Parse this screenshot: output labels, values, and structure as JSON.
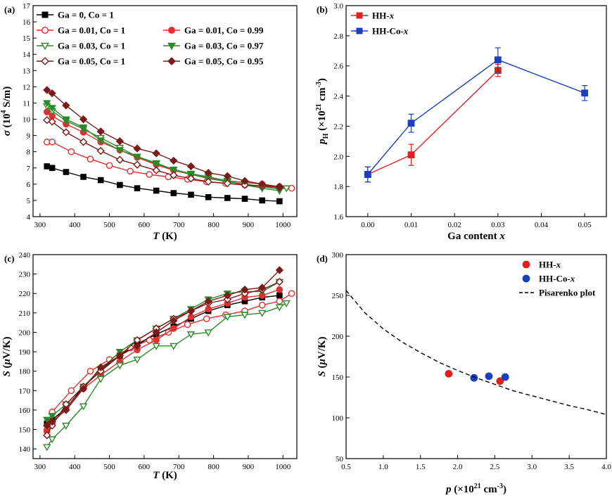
{
  "chart_data": [
    {
      "panel": "(a)",
      "type": "line",
      "xlabel": "T (K)",
      "ylabel": "σ (10^4 S/m)",
      "xlim": [
        280,
        1040
      ],
      "ylim": [
        4,
        17
      ],
      "xticks": [
        300,
        400,
        500,
        600,
        700,
        800,
        900,
        1000
      ],
      "yticks": [
        4,
        5,
        6,
        7,
        8,
        9,
        10,
        11,
        12,
        13,
        14,
        15,
        16,
        17
      ],
      "legend": "top-left",
      "series": [
        {
          "name": "Ga = 0, Co = 1",
          "color": "#000000",
          "marker": "square",
          "filled": true,
          "x": [
            320,
            335,
            375,
            425,
            475,
            530,
            580,
            635,
            685,
            735,
            785,
            840,
            890,
            940,
            990
          ],
          "y": [
            7.1,
            7.0,
            6.75,
            6.45,
            6.25,
            5.95,
            5.75,
            5.6,
            5.45,
            5.35,
            5.2,
            5.15,
            5.1,
            5.0,
            4.95
          ]
        },
        {
          "name": "Ga = 0.01, Co = 1",
          "color": "#e03030",
          "marker": "circle",
          "filled": false,
          "x": [
            320,
            335,
            390,
            445,
            500,
            560,
            615,
            670,
            725,
            780,
            835,
            890,
            940,
            990,
            1025
          ],
          "y": [
            8.6,
            8.6,
            8.0,
            7.55,
            7.15,
            6.8,
            6.6,
            6.45,
            6.3,
            6.15,
            6.05,
            5.95,
            5.85,
            5.8,
            5.75
          ]
        },
        {
          "name": "Ga = 0.01, Co = 0.99",
          "color": "#e03030",
          "marker": "circle",
          "filled": true,
          "x": [
            320,
            335,
            375,
            425,
            475,
            530,
            580,
            635,
            685,
            735,
            785,
            840,
            890,
            940,
            990
          ],
          "y": [
            10.45,
            10.2,
            9.7,
            9.2,
            8.6,
            8.1,
            7.65,
            7.2,
            6.85,
            6.6,
            6.4,
            6.2,
            6.1,
            6.0,
            5.85
          ]
        },
        {
          "name": "Ga = 0.03, Co = 1",
          "color": "#2a8a2a",
          "marker": "triangle-down",
          "filled": false,
          "x": [
            320,
            335,
            375,
            425,
            475,
            530,
            580,
            635,
            685,
            735,
            785,
            840,
            890,
            940,
            990,
            1010
          ],
          "y": [
            10.8,
            10.5,
            9.9,
            9.4,
            8.85,
            8.25,
            7.7,
            7.25,
            6.9,
            6.6,
            6.35,
            6.15,
            6.0,
            5.85,
            5.7,
            5.75
          ]
        },
        {
          "name": "Ga = 0.03, Co = 0.97",
          "color": "#2a8a2a",
          "marker": "triangle-down",
          "filled": true,
          "x": [
            320,
            335,
            375,
            425,
            475,
            530,
            580,
            635,
            685,
            735,
            785,
            840,
            890,
            940,
            990
          ],
          "y": [
            11.0,
            10.7,
            10.0,
            9.5,
            8.7,
            8.1,
            7.7,
            7.3,
            6.9,
            6.65,
            6.45,
            6.2,
            5.95,
            5.75,
            5.6
          ]
        },
        {
          "name": "Ga = 0.05, Co = 1",
          "color": "#7a1a1a",
          "marker": "diamond",
          "filled": false,
          "x": [
            320,
            335,
            375,
            425,
            475,
            530,
            580,
            635,
            685,
            735,
            785,
            840,
            890,
            940,
            990
          ],
          "y": [
            9.95,
            9.85,
            9.2,
            8.6,
            8.05,
            7.5,
            7.2,
            6.85,
            6.55,
            6.35,
            6.15,
            6.05,
            5.95,
            5.9,
            5.85
          ]
        },
        {
          "name": "Ga = 0.05, Co = 0.95",
          "color": "#7a1a1a",
          "marker": "diamond",
          "filled": true,
          "x": [
            320,
            335,
            375,
            425,
            475,
            530,
            580,
            635,
            685,
            735,
            785,
            840,
            890,
            940,
            990
          ],
          "y": [
            11.8,
            11.6,
            10.85,
            10.0,
            9.25,
            8.65,
            8.2,
            7.9,
            7.45,
            7.1,
            6.7,
            6.5,
            6.2,
            6.0,
            5.8
          ]
        }
      ]
    },
    {
      "panel": "(b)",
      "type": "line",
      "xlabel": "Ga content x",
      "ylabel": "p_H (×10^21 cm^-3)",
      "xlim": [
        -0.005,
        0.055
      ],
      "ylim": [
        1.6,
        3.0
      ],
      "xticks": [
        0.0,
        0.01,
        0.02,
        0.03,
        0.04,
        0.05
      ],
      "yticks": [
        1.6,
        1.8,
        2.0,
        2.2,
        2.4,
        2.6,
        2.8,
        3.0
      ],
      "legend": "top-left",
      "series": [
        {
          "name": "HH-x",
          "color": "#e02020",
          "marker": "square",
          "filled": true,
          "x": [
            0.0,
            0.01,
            0.03
          ],
          "y": [
            1.88,
            2.01,
            2.57
          ],
          "err": [
            0.05,
            0.07,
            0.04
          ]
        },
        {
          "name": "HH-Co-x",
          "color": "#1a3fbf",
          "marker": "square",
          "filled": true,
          "x": [
            0.0,
            0.01,
            0.03,
            0.05
          ],
          "y": [
            1.88,
            2.22,
            2.64,
            2.42
          ],
          "err": [
            0.05,
            0.06,
            0.08,
            0.05
          ]
        }
      ]
    },
    {
      "panel": "(c)",
      "type": "line",
      "xlabel": "T (K)",
      "ylabel": "S (μV/K)",
      "xlim": [
        280,
        1040
      ],
      "ylim": [
        135,
        240
      ],
      "xticks": [
        300,
        400,
        500,
        600,
        700,
        800,
        900,
        1000
      ],
      "yticks": [
        140,
        150,
        160,
        170,
        180,
        190,
        200,
        210,
        220,
        230,
        240
      ],
      "series": [
        {
          "name": "Ga = 0, Co = 1",
          "color": "#000000",
          "marker": "square",
          "filled": true,
          "x": [
            320,
            335,
            375,
            425,
            475,
            530,
            580,
            635,
            685,
            735,
            785,
            840,
            890,
            940,
            990
          ],
          "y": [
            153,
            155,
            161,
            172,
            181,
            188,
            194,
            199,
            203,
            207,
            211,
            214,
            216,
            218,
            219
          ]
        },
        {
          "name": "Ga = 0.01, Co = 1",
          "color": "#e03030",
          "marker": "circle",
          "filled": false,
          "x": [
            320,
            335,
            390,
            445,
            500,
            560,
            615,
            670,
            725,
            780,
            835,
            890,
            940,
            990,
            1025
          ],
          "y": [
            150,
            159,
            170,
            180,
            186,
            192,
            196,
            200,
            204,
            207,
            209,
            211,
            214,
            216,
            220
          ]
        },
        {
          "name": "Ga = 0.01, Co = 0.99",
          "color": "#e03030",
          "marker": "circle",
          "filled": true,
          "x": [
            320,
            335,
            375,
            425,
            475,
            530,
            580,
            635,
            685,
            735,
            785,
            840,
            890,
            940,
            990
          ],
          "y": [
            149,
            153,
            161,
            171,
            178,
            185,
            191,
            196,
            202,
            208,
            212,
            215,
            218,
            219,
            222
          ]
        },
        {
          "name": "Ga = 0.03, Co = 1",
          "color": "#2a8a2a",
          "marker": "triangle-down",
          "filled": false,
          "x": [
            320,
            335,
            375,
            425,
            475,
            530,
            580,
            635,
            685,
            735,
            785,
            840,
            890,
            940,
            990,
            1010
          ],
          "y": [
            141,
            145,
            152,
            162,
            176,
            183,
            186,
            193,
            193,
            199,
            200,
            208,
            209,
            210,
            213,
            215
          ]
        },
        {
          "name": "Ga = 0.03, Co = 0.97",
          "color": "#2a8a2a",
          "marker": "triangle-down",
          "filled": true,
          "x": [
            320,
            335,
            375,
            425,
            475,
            530,
            580,
            635,
            685,
            735,
            785,
            840,
            890,
            940,
            990
          ],
          "y": [
            155,
            157,
            163,
            172,
            181,
            190,
            196,
            202,
            207,
            212,
            217,
            220,
            221,
            221,
            226
          ]
        },
        {
          "name": "Ga = 0.05, Co = 1",
          "color": "#7a1a1a",
          "marker": "diamond",
          "filled": false,
          "x": [
            320,
            335,
            375,
            425,
            475,
            530,
            580,
            635,
            685,
            735,
            785,
            840,
            890,
            940,
            990
          ],
          "y": [
            147,
            152,
            163,
            172,
            180,
            188,
            196,
            202,
            207,
            211,
            215,
            217,
            220,
            222,
            226
          ]
        },
        {
          "name": "Ga = 0.05, Co = 0.95",
          "color": "#7a1a1a",
          "marker": "diamond",
          "filled": true,
          "x": [
            320,
            335,
            375,
            425,
            475,
            530,
            580,
            635,
            685,
            735,
            785,
            840,
            890,
            940,
            990
          ],
          "y": [
            152,
            154,
            160,
            171,
            182,
            188,
            193,
            200,
            206,
            211,
            216,
            219,
            222,
            223,
            232
          ]
        }
      ]
    },
    {
      "panel": "(d)",
      "type": "scatter",
      "xlabel": "p (×10^21 cm^-3)",
      "ylabel": "S (μV/K)",
      "xlim": [
        0.5,
        4.0
      ],
      "ylim": [
        50,
        300
      ],
      "xticks": [
        0.5,
        1.0,
        1.5,
        2.0,
        2.5,
        3.0,
        3.5,
        4.0
      ],
      "yticks": [
        50,
        100,
        150,
        200,
        250,
        300
      ],
      "legend": "top-right",
      "series": [
        {
          "name": "HH-x",
          "color": "#e02020",
          "marker": "circle",
          "filled": true,
          "x": [
            1.88,
            2.57
          ],
          "y": [
            154,
            145
          ]
        },
        {
          "name": "HH-Co-x",
          "color": "#1a3fbf",
          "marker": "circle",
          "filled": true,
          "x": [
            2.22,
            2.42,
            2.64
          ],
          "y": [
            149,
            151,
            150
          ]
        },
        {
          "name": "Pisarenko plot",
          "color": "#000000",
          "style": "dashed",
          "x": [
            0.5,
            0.75,
            1.0,
            1.25,
            1.5,
            1.75,
            2.0,
            2.25,
            2.5,
            2.75,
            3.0,
            3.25,
            3.5,
            3.75,
            4.0
          ],
          "y": [
            256,
            229,
            209,
            193,
            180,
            168,
            158,
            149,
            141,
            133,
            127,
            121,
            115,
            110,
            104
          ]
        }
      ]
    }
  ]
}
